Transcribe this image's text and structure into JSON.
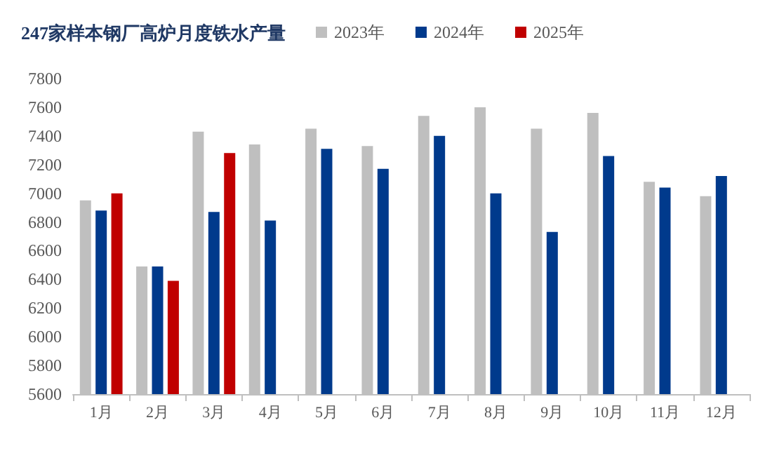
{
  "chart_data": {
    "type": "bar",
    "title": "247家样本钢厂高炉月度铁水产量",
    "categories": [
      "1月",
      "2月",
      "3月",
      "4月",
      "5月",
      "6月",
      "7月",
      "8月",
      "9月",
      "10月",
      "11月",
      "12月"
    ],
    "series": [
      {
        "name": "2023年",
        "color": "#bfbfbf",
        "values": [
          6950,
          6490,
          7430,
          7340,
          7450,
          7330,
          7540,
          7600,
          7450,
          7560,
          7080,
          6980
        ]
      },
      {
        "name": "2024年",
        "color": "#003a8c",
        "values": [
          6880,
          6490,
          6870,
          6810,
          7310,
          7170,
          7400,
          7000,
          6730,
          7260,
          7040,
          7120
        ]
      },
      {
        "name": "2025年",
        "color": "#c00000",
        "values": [
          7000,
          6390,
          7280,
          null,
          null,
          null,
          null,
          null,
          null,
          null,
          null,
          null
        ]
      }
    ],
    "ylim": [
      5600,
      7800
    ],
    "yticks": [
      5600,
      5800,
      6000,
      6200,
      6400,
      6600,
      6800,
      7000,
      7200,
      7400,
      7600,
      7800
    ],
    "grid": false,
    "legend": "top"
  }
}
